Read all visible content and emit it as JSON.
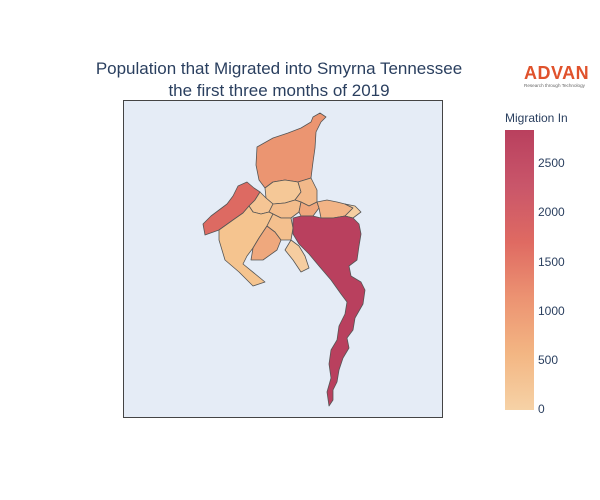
{
  "title": {
    "line1": "Population that Migrated into Smyrna Tennessee",
    "line2": "the first three months of 2019"
  },
  "logo": {
    "word": "ADVAN",
    "tagline": "Research through Technology"
  },
  "colorbar": {
    "title": "Migration In",
    "ticks": [
      "2500",
      "2000",
      "1500",
      "1000",
      "500",
      "0"
    ],
    "colors": [
      "#b9405e",
      "#c9566a",
      "#df6a62",
      "#ec9372",
      "#f3b683",
      "#f6d2a6"
    ]
  },
  "map": {
    "background": "#e5ecf6",
    "border": "#444444"
  }
}
